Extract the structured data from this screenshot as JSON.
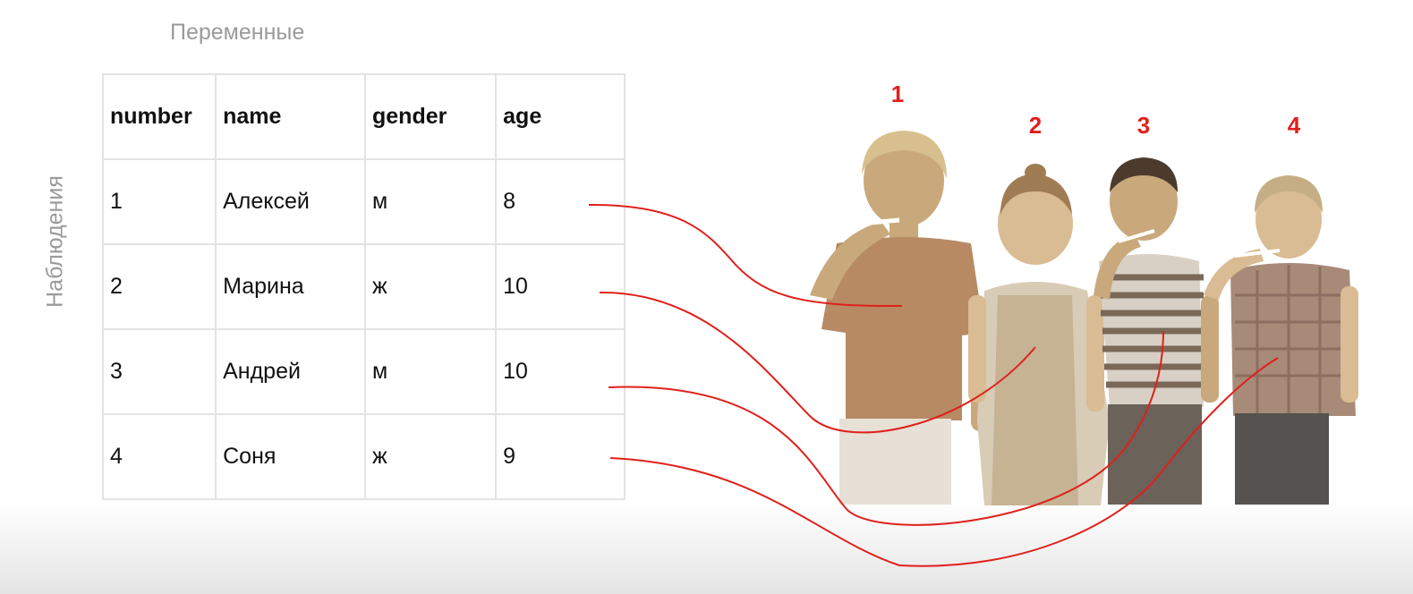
{
  "labels": {
    "variables": "Переменные",
    "observations": "Наблюдения"
  },
  "table": {
    "columns": [
      "number",
      "name",
      "gender",
      "age"
    ],
    "rows": [
      [
        "1",
        "Алексей",
        "м",
        "8"
      ],
      [
        "2",
        "Марина",
        "ж",
        "10"
      ],
      [
        "3",
        "Андрей",
        "м",
        "10"
      ],
      [
        "4",
        "Соня",
        "ж",
        "9"
      ]
    ]
  },
  "children_numbers": [
    "1",
    "2",
    "3",
    "4"
  ],
  "colors": {
    "connector": "#e0201b",
    "label_gray": "#9a9a9a",
    "grid": "#e3e3e3"
  }
}
